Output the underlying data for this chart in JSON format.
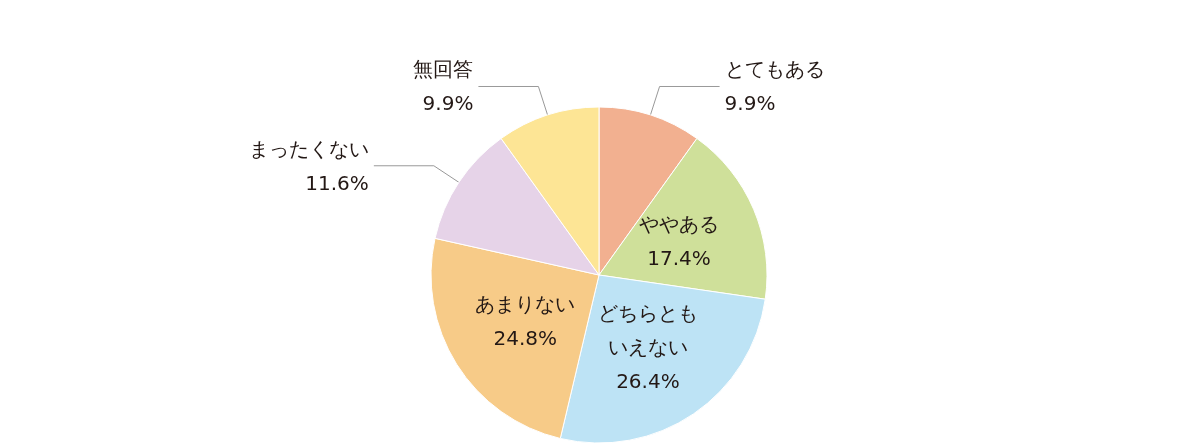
{
  "chart_data": {
    "type": "pie",
    "categories": [
      "とてもある",
      "ややある",
      "どちらともいえない",
      "あまりない",
      "まったくない",
      "無回答"
    ],
    "values": [
      9.9,
      17.4,
      26.4,
      24.8,
      11.6,
      9.9
    ],
    "colors": [
      "#f2b090",
      "#cfe09a",
      "#bde3f5",
      "#f7cb88",
      "#e6d3e8",
      "#fde595"
    ],
    "value_labels": [
      "9.9%",
      "17.4%",
      "26.4%",
      "24.8%",
      "11.6%",
      "9.9%"
    ]
  }
}
